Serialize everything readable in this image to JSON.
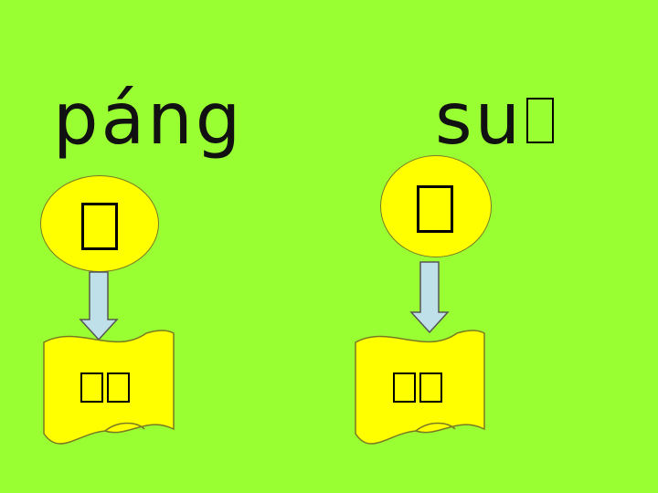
{
  "left": {
    "pinyin": "páng",
    "character": "",
    "word": ""
  },
  "right": {
    "pinyin": "su",
    "character": "",
    "word": ""
  },
  "colors": {
    "background": "#99ff33",
    "shape_fill": "#ffff00",
    "arrow_fill": "#bfe0e8"
  }
}
